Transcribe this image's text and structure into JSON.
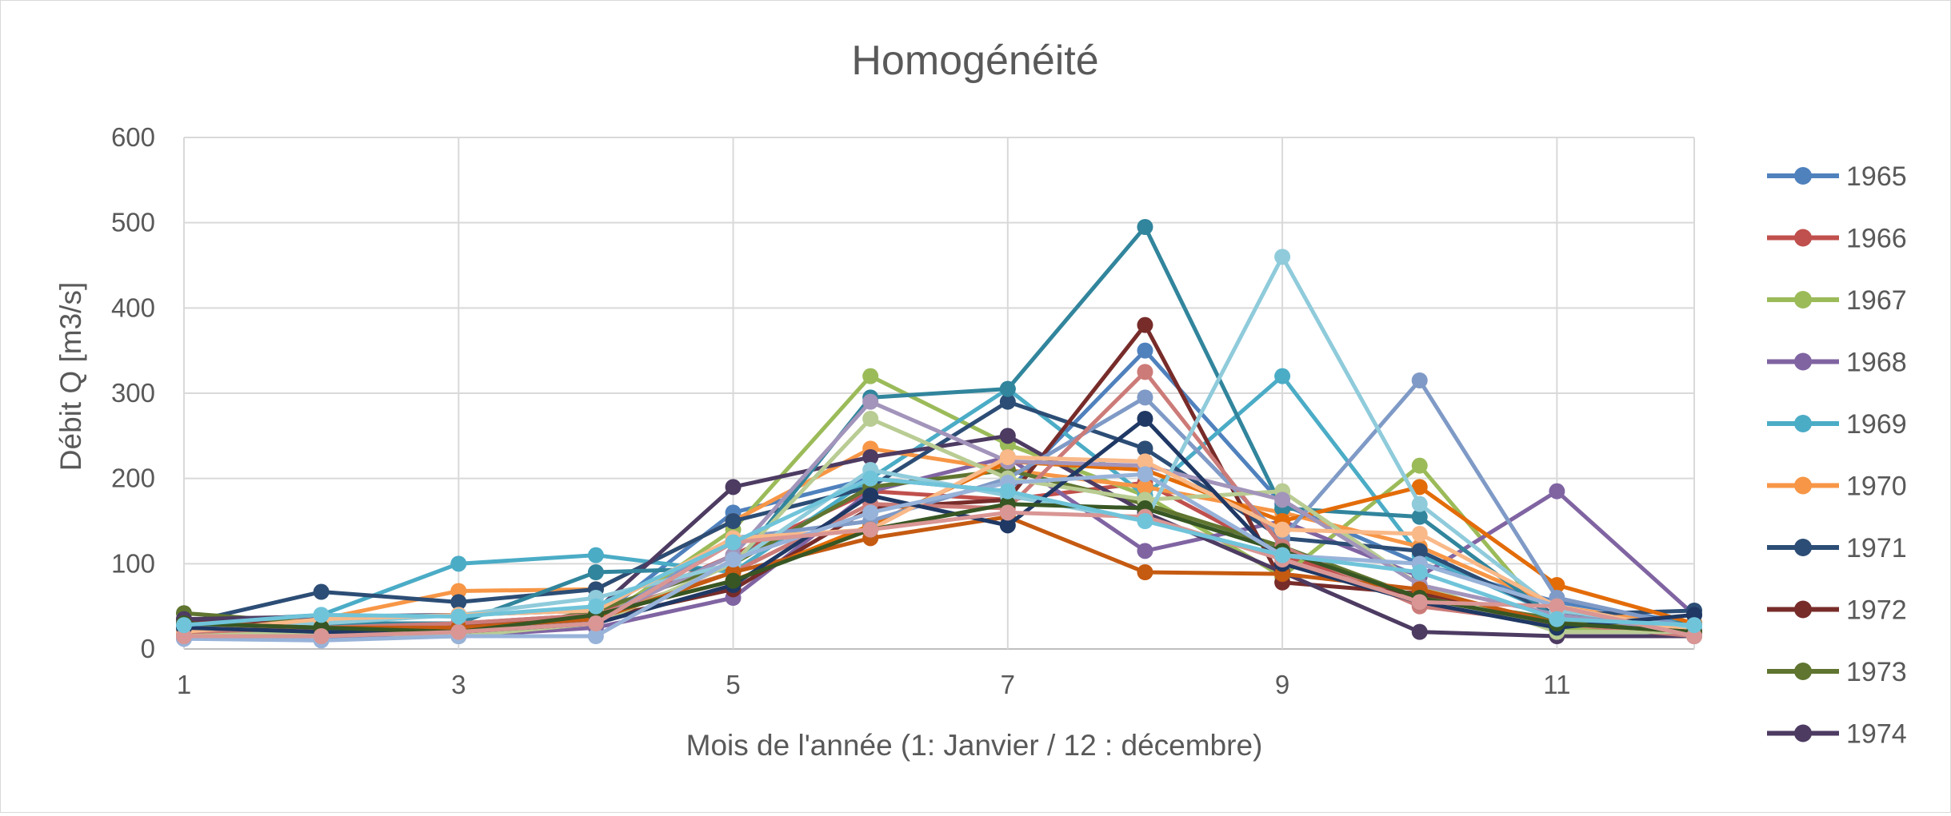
{
  "chart_data": {
    "type": "line",
    "title": "Homogénéité",
    "xlabel": "Mois de l'année (1: Janvier / 12 : décembre)",
    "ylabel": "Débit Q [m3/s]",
    "xlim": [
      1,
      12
    ],
    "ylim": [
      0,
      600
    ],
    "x_ticks": [
      1,
      3,
      5,
      7,
      9,
      11
    ],
    "y_ticks": [
      0,
      100,
      200,
      300,
      400,
      500,
      600
    ],
    "grid": true,
    "legend_position": "right",
    "x": [
      1,
      2,
      3,
      4,
      5,
      6,
      7,
      8,
      9,
      10,
      11,
      12
    ],
    "series": [
      {
        "name": "1965",
        "color": "#4f81bd",
        "values": [
          22,
          30,
          25,
          35,
          160,
          200,
          185,
          350,
          170,
          100,
          55,
          30
        ],
        "in_legend": true
      },
      {
        "name": "1966",
        "color": "#c0504d",
        "values": [
          18,
          25,
          30,
          40,
          110,
          185,
          175,
          195,
          110,
          60,
          35,
          20
        ],
        "in_legend": true
      },
      {
        "name": "1967",
        "color": "#9bbb59",
        "values": [
          20,
          25,
          20,
          30,
          140,
          320,
          240,
          180,
          85,
          215,
          25,
          20
        ],
        "in_legend": true
      },
      {
        "name": "1968",
        "color": "#8064a2",
        "values": [
          12,
          15,
          15,
          25,
          60,
          185,
          225,
          115,
          150,
          85,
          185,
          40
        ],
        "in_legend": true
      },
      {
        "name": "1969",
        "color": "#4bacc6",
        "values": [
          30,
          40,
          100,
          110,
          90,
          200,
          305,
          180,
          320,
          110,
          40,
          30
        ],
        "in_legend": true
      },
      {
        "name": "1970",
        "color": "#f79646",
        "values": [
          25,
          35,
          68,
          70,
          150,
          235,
          210,
          190,
          160,
          120,
          50,
          25
        ],
        "in_legend": true
      },
      {
        "name": "1971",
        "color": "#2c4d75",
        "values": [
          30,
          67,
          55,
          70,
          150,
          190,
          290,
          235,
          130,
          115,
          40,
          45
        ],
        "in_legend": true
      },
      {
        "name": "1972",
        "color": "#772c2a",
        "values": [
          35,
          30,
          28,
          35,
          70,
          165,
          175,
          380,
          78,
          65,
          30,
          20
        ],
        "in_legend": true
      },
      {
        "name": "1973",
        "color": "#5f7530",
        "values": [
          42,
          30,
          15,
          45,
          100,
          190,
          210,
          170,
          120,
          60,
          35,
          20
        ],
        "in_legend": true
      },
      {
        "name": "1974",
        "color": "#4d3b62",
        "values": [
          35,
          38,
          40,
          45,
          190,
          225,
          250,
          160,
          90,
          20,
          15,
          15
        ],
        "in_legend": true
      },
      {
        "name": "",
        "color": "#31859c",
        "values": [
          25,
          30,
          30,
          90,
          95,
          295,
          305,
          495,
          165,
          155,
          35,
          30
        ],
        "in_legend": false
      },
      {
        "name": "",
        "color": "#e36c09",
        "values": [
          20,
          25,
          20,
          40,
          80,
          145,
          220,
          210,
          150,
          190,
          75,
          30
        ],
        "in_legend": false
      },
      {
        "name": "",
        "color": "#7f9ac6",
        "values": [
          15,
          20,
          25,
          30,
          130,
          150,
          200,
          295,
          130,
          315,
          60,
          25
        ],
        "in_legend": false
      },
      {
        "name": "",
        "color": "#cc7b78",
        "values": [
          20,
          25,
          30,
          40,
          90,
          170,
          165,
          325,
          120,
          50,
          30,
          15
        ],
        "in_legend": false
      },
      {
        "name": "",
        "color": "#b9cc93",
        "values": [
          15,
          20,
          15,
          30,
          100,
          270,
          200,
          175,
          185,
          75,
          20,
          20
        ],
        "in_legend": false
      },
      {
        "name": "",
        "color": "#a294ba",
        "values": [
          15,
          15,
          20,
          35,
          110,
          290,
          220,
          215,
          175,
          75,
          40,
          20
        ],
        "in_legend": false
      },
      {
        "name": "",
        "color": "#8fcbdb",
        "values": [
          25,
          30,
          40,
          60,
          100,
          210,
          180,
          150,
          460,
          170,
          45,
          25
        ],
        "in_legend": false
      },
      {
        "name": "",
        "color": "#f9b989",
        "values": [
          20,
          35,
          40,
          45,
          130,
          140,
          225,
          220,
          140,
          135,
          50,
          20
        ],
        "in_legend": false
      },
      {
        "name": "",
        "color": "#c55a11",
        "values": [
          30,
          25,
          25,
          35,
          90,
          130,
          155,
          90,
          88,
          70,
          30,
          20
        ],
        "in_legend": false
      },
      {
        "name": "",
        "color": "#1f3864",
        "values": [
          25,
          20,
          20,
          30,
          75,
          180,
          145,
          270,
          100,
          55,
          25,
          40
        ],
        "in_legend": false
      },
      {
        "name": "",
        "color": "#375623",
        "values": [
          30,
          25,
          20,
          40,
          80,
          140,
          170,
          165,
          115,
          60,
          30,
          20
        ],
        "in_legend": false
      },
      {
        "name": "",
        "color": "#98b3d9",
        "values": [
          12,
          10,
          15,
          15,
          105,
          160,
          195,
          205,
          110,
          100,
          50,
          15
        ],
        "in_legend": false
      },
      {
        "name": "",
        "color": "#d99694",
        "values": [
          15,
          15,
          20,
          30,
          125,
          140,
          160,
          155,
          105,
          55,
          50,
          15
        ],
        "in_legend": false
      },
      {
        "name": "",
        "color": "#70c4da",
        "values": [
          28,
          40,
          38,
          50,
          125,
          200,
          185,
          150,
          110,
          90,
          35,
          28
        ],
        "in_legend": false
      }
    ]
  }
}
